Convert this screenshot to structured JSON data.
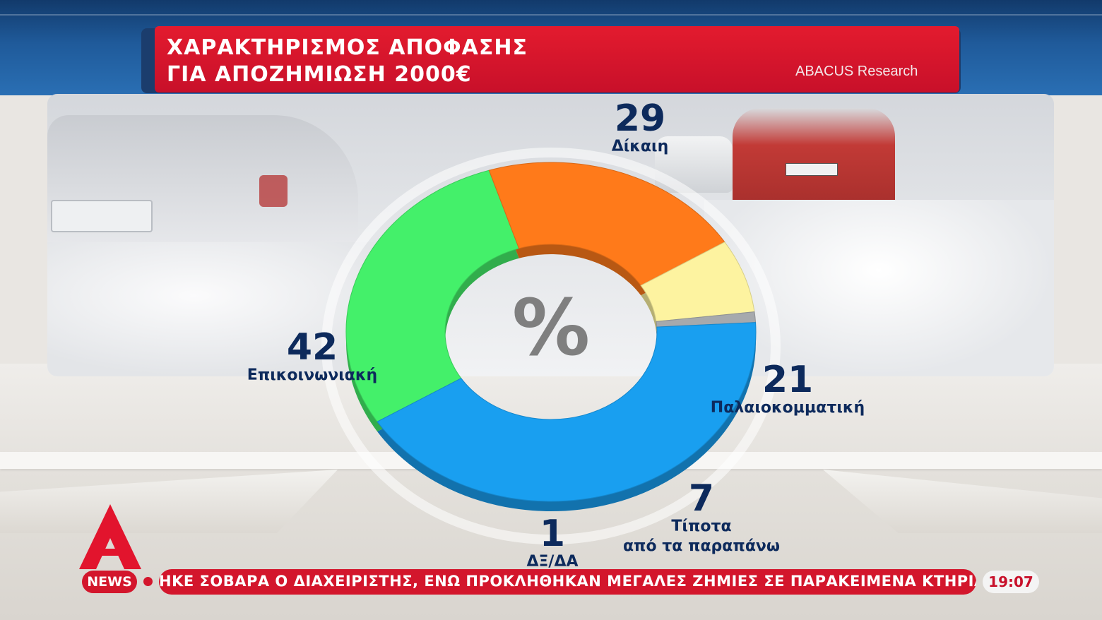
{
  "header": {
    "title_line1": "ΧΑΡΑΚΤΗΡΙΣΜΟΣ ΑΠΟΦΑΣΗΣ",
    "title_line2": "ΓΙΑ ΑΠΟΖΗΜΙΩΣΗ 2000€",
    "source": "ABACUS Research"
  },
  "chart_data": {
    "type": "pie",
    "center_label": "%",
    "categories": [
      "Δίκαιη",
      "Παλαιοκομματική",
      "Τίποτα από τα παραπάνω",
      "ΔΞ/ΔΑ",
      "Επικοινωνιακή"
    ],
    "values": [
      29,
      21,
      7,
      1,
      42
    ],
    "colors": [
      "#44f06a",
      "#ff7a1a",
      "#fdf3a0",
      "#a6a9ad",
      "#199ff0"
    ],
    "label_lines": {
      "Δίκαιη": [
        "Δίκαιη"
      ],
      "Παλαιοκομματική": [
        "Παλαιοκομματική"
      ],
      "Τίποτα από τα παραπάνω": [
        "Τίποτα",
        "από τα παραπάνω"
      ],
      "ΔΞ/ΔΑ": [
        "ΔΞ/ΔΑ"
      ],
      "Επικοινωνιακή": [
        "Επικοινωνιακή"
      ]
    }
  },
  "ticker": {
    "badge": "NEWS",
    "text": "ΗΚΕ ΣΟΒΑΡΑ Ο ΔΙΑΧΕΙΡΙΣΤΗΣ, ΕΝΩ ΠΡΟΚΛΗΘΗΚΑΝ ΜΕΓΑΛΕΣ ΖΗΜΙΕΣ ΣΕ ΠΑΡΑΚΕΙΜΕΝΑ ΚΤΗΡΙΑ.",
    "time": "19:07"
  },
  "logo": {
    "brand_color": "#e2142d",
    "icon": "alpha-news-logo-icon"
  }
}
